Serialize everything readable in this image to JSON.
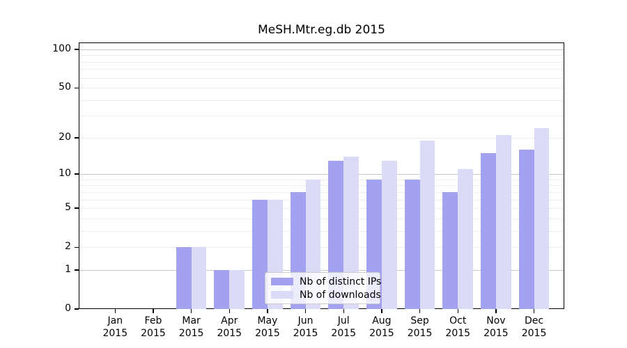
{
  "title": "MeSH.Mtr.eg.db 2015",
  "colors": {
    "distinct_ips": "#a2a2f0",
    "downloads": "#dbdbf8",
    "major_gridline": "#c6c6c6",
    "minor_gridline": "#ececec",
    "axis": "#000000",
    "background": "#ffffff"
  },
  "legend": {
    "items": [
      {
        "label": "Nb of distinct IPs",
        "color": "#a2a2f0"
      },
      {
        "label": "Nb of downloads",
        "color": "#dbdbf8"
      }
    ]
  },
  "chart_data": {
    "type": "bar",
    "title": "MeSH.Mtr.eg.db 2015",
    "categories": [
      "Jan 2015",
      "Feb 2015",
      "Mar 2015",
      "Apr 2015",
      "May 2015",
      "Jun 2015",
      "Jul 2015",
      "Aug 2015",
      "Sep 2015",
      "Oct 2015",
      "Nov 2015",
      "Dec 2015"
    ],
    "series": [
      {
        "name": "Nb of distinct IPs",
        "color": "#a2a2f0",
        "values": [
          0,
          0,
          2,
          1,
          6,
          7,
          13,
          9,
          9,
          7,
          15,
          16
        ]
      },
      {
        "name": "Nb of downloads",
        "color": "#dbdbf8",
        "values": [
          0,
          0,
          2,
          1,
          6,
          9,
          14,
          13,
          19,
          11,
          21,
          24
        ]
      }
    ],
    "xlabel": "",
    "ylabel": "",
    "yscale": "log1p",
    "ylim": [
      0,
      113
    ],
    "y_ticks": [
      0,
      1,
      2,
      5,
      10,
      20,
      50,
      100
    ],
    "y_major_gridlines": [
      1,
      10,
      100
    ],
    "y_minor_gridlines": [
      2,
      3,
      4,
      5,
      6,
      7,
      8,
      9,
      20,
      30,
      40,
      50,
      60,
      70,
      80,
      90
    ],
    "grid": "on",
    "legend_position": "bottom-center-inside"
  }
}
